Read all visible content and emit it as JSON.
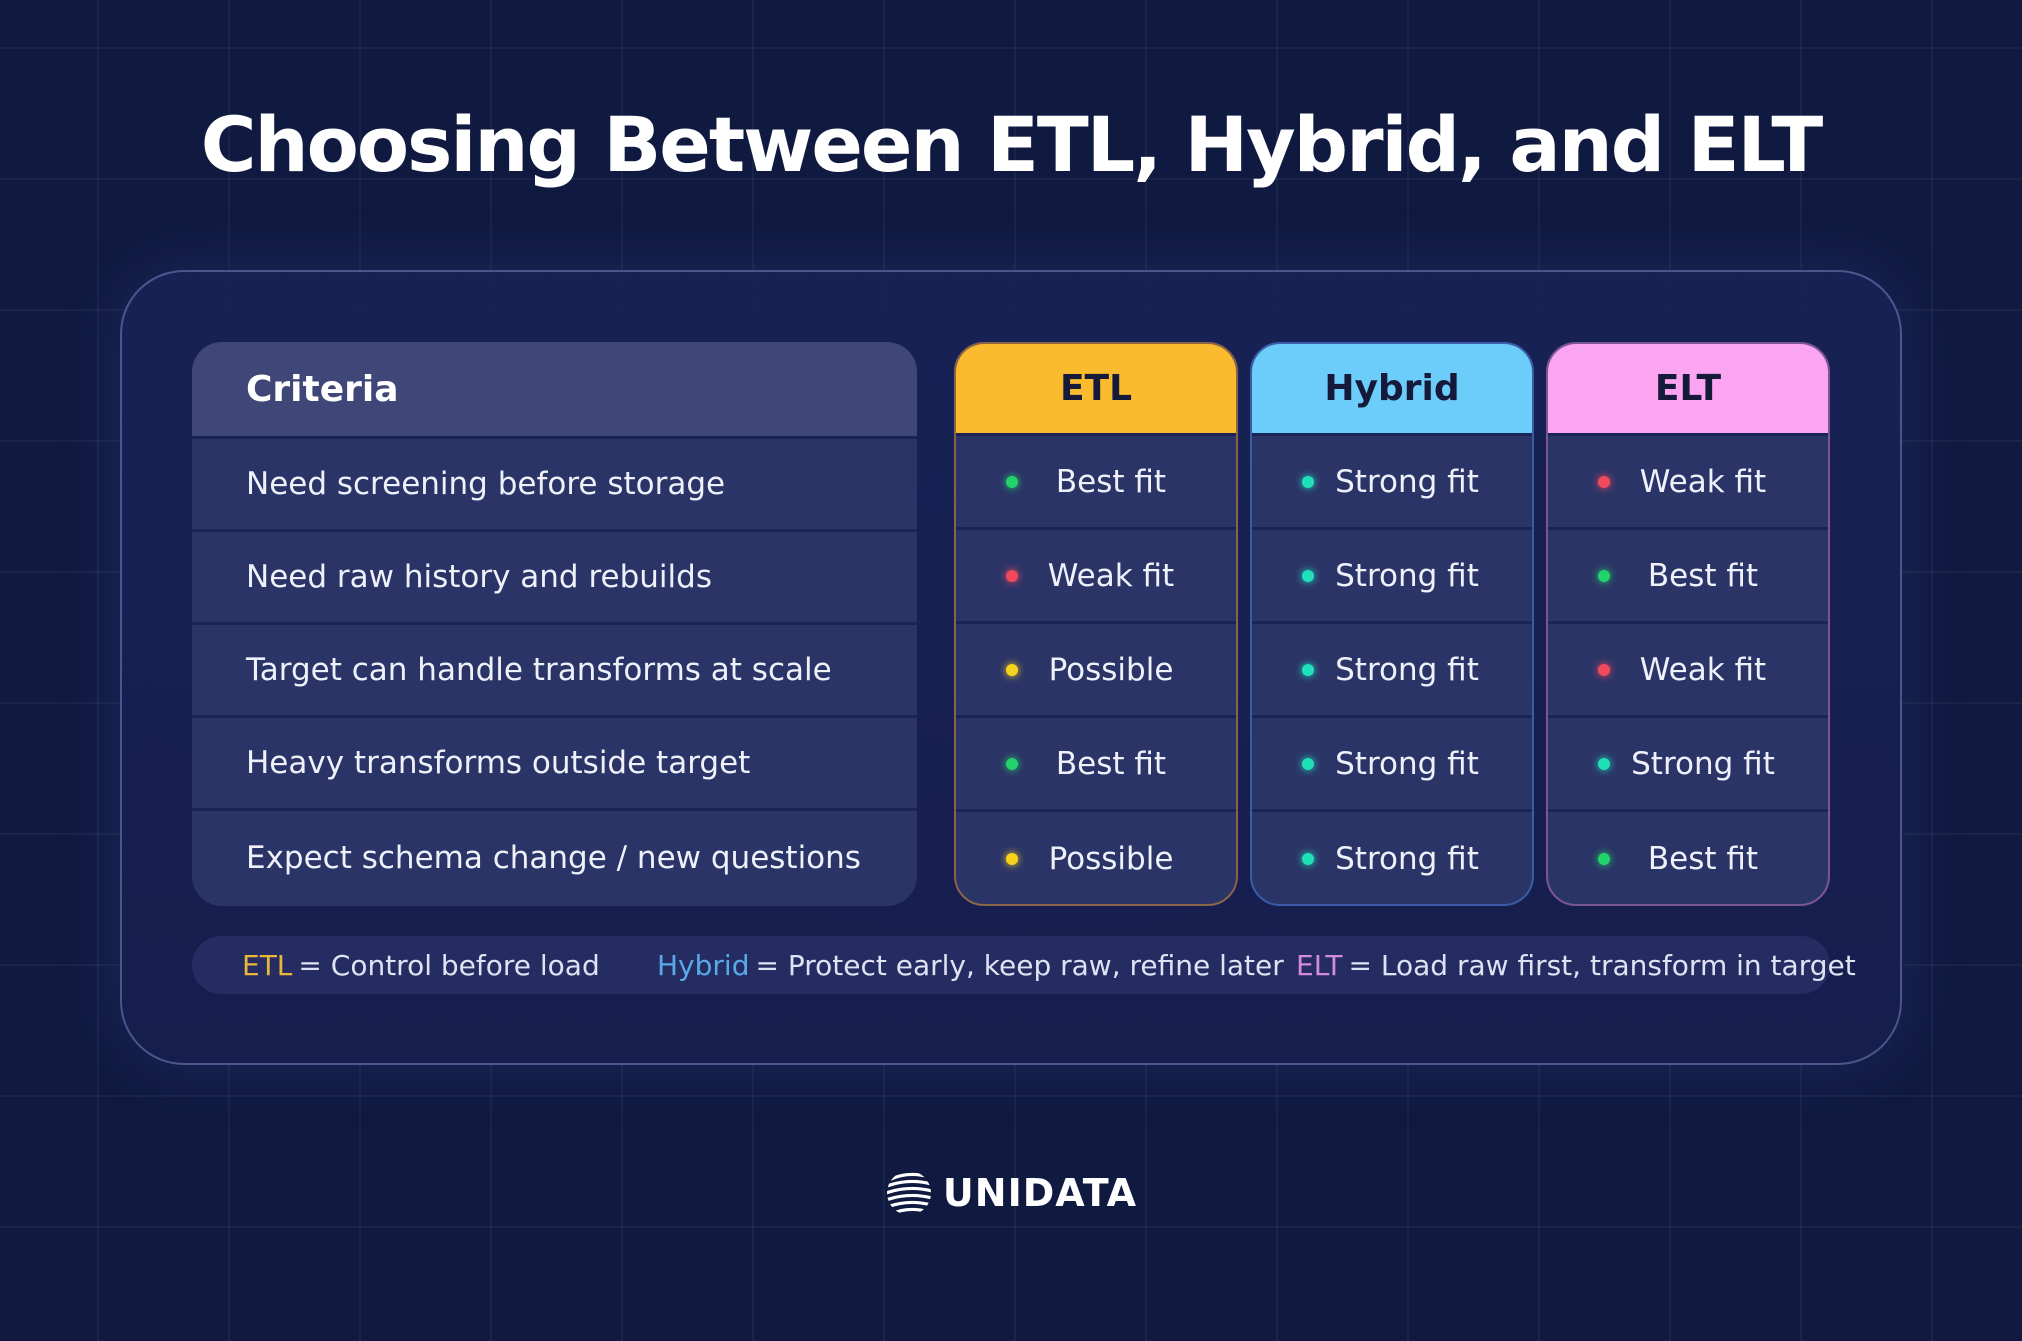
{
  "title": "Choosing Between ETL, Hybrid, and ELT",
  "table": {
    "criteria_header": "Criteria",
    "criteria": [
      "Need screening before storage",
      "Need raw history and rebuilds",
      "Target can handle transforms at scale",
      "Heavy transforms outside target",
      "Expect schema change / new questions"
    ],
    "columns": [
      {
        "name": "ETL",
        "color": "#fbbb2e",
        "cells": [
          {
            "label": "Best fit",
            "dot": "#22d36b"
          },
          {
            "label": "Weak fit",
            "dot": "#f04a5a"
          },
          {
            "label": "Possible",
            "dot": "#f7d21e"
          },
          {
            "label": "Best fit",
            "dot": "#22d36b"
          },
          {
            "label": "Possible",
            "dot": "#f7d21e"
          }
        ]
      },
      {
        "name": "Hybrid",
        "color": "#6ccdfa",
        "cells": [
          {
            "label": "Strong fit",
            "dot": "#1fe0b8"
          },
          {
            "label": "Strong fit",
            "dot": "#1fe0b8"
          },
          {
            "label": "Strong fit",
            "dot": "#1fe0b8"
          },
          {
            "label": "Strong fit",
            "dot": "#1fe0b8"
          },
          {
            "label": "Strong fit",
            "dot": "#1fe0b8"
          }
        ]
      },
      {
        "name": "ELT",
        "color": "#fba4f2",
        "cells": [
          {
            "label": "Weak fit",
            "dot": "#f04a5a"
          },
          {
            "label": "Best fit",
            "dot": "#22d36b"
          },
          {
            "label": "Weak fit",
            "dot": "#f04a5a"
          },
          {
            "label": "Strong fit",
            "dot": "#1fe0b8"
          },
          {
            "label": "Best fit",
            "dot": "#22d36b"
          }
        ]
      }
    ]
  },
  "legend": [
    {
      "key": "ETL",
      "key_color": "#e7b63a",
      "text": "= Control before load"
    },
    {
      "key": "Hybrid",
      "key_color": "#5aa9e6",
      "text": "= Protect early, keep raw, refine later"
    },
    {
      "key": "ELT",
      "key_color": "#d38ad9",
      "text": "= Load raw first, transform in target"
    }
  ],
  "brand": {
    "name": "UNIDATA",
    "icon": "globe-logo-icon"
  }
}
